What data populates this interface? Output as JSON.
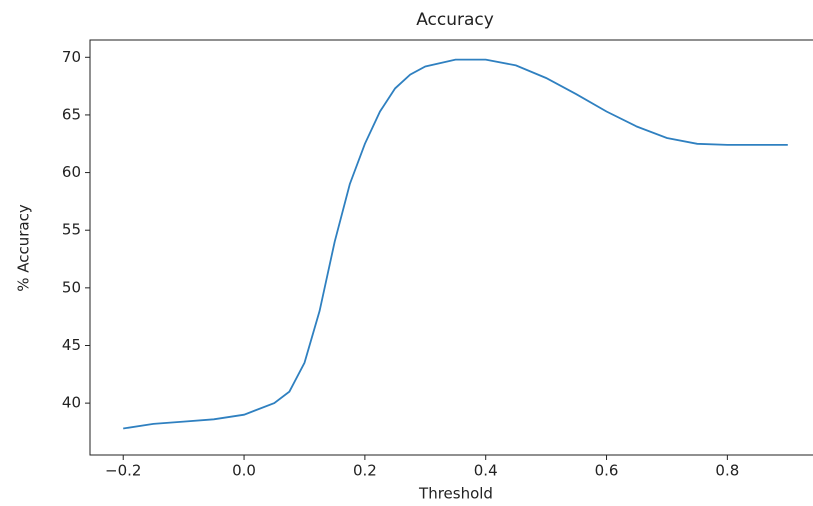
{
  "chart_data": {
    "type": "line",
    "title": "Accuracy",
    "x_label": "Threshold",
    "y_label": "% Accuracy",
    "x": [
      -0.2,
      -0.15,
      -0.1,
      -0.05,
      0.0,
      0.05,
      0.075,
      0.1,
      0.125,
      0.15,
      0.175,
      0.2,
      0.225,
      0.25,
      0.275,
      0.3,
      0.35,
      0.4,
      0.45,
      0.5,
      0.55,
      0.6,
      0.65,
      0.7,
      0.75,
      0.8,
      0.85,
      0.9
    ],
    "values": [
      37.8,
      38.2,
      38.4,
      38.6,
      39.0,
      40.0,
      41.0,
      43.5,
      48.0,
      54.0,
      59.0,
      62.5,
      65.3,
      67.3,
      68.5,
      69.2,
      69.8,
      69.8,
      69.3,
      68.2,
      66.8,
      65.3,
      64.0,
      63.0,
      62.5,
      62.4,
      62.4,
      62.4
    ],
    "color": "#2f80c0",
    "xlim": [
      -0.255,
      0.955
    ],
    "ylim": [
      35.5,
      71.5
    ],
    "xticks": [
      {
        "value": -0.2,
        "label": "−0.2"
      },
      {
        "value": 0.0,
        "label": "0.0"
      },
      0.2,
      0.4,
      0.6,
      0.8
    ],
    "yticks": [
      40,
      45,
      50,
      55,
      60,
      65,
      70
    ]
  }
}
